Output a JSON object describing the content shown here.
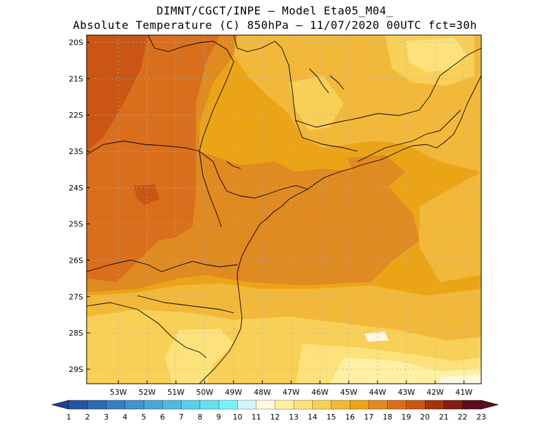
{
  "header": {
    "line1": "DIMNT/CGCT/INPE –  Model Eta05_M04_",
    "line2": "Absolute Temperature (C) 850hPa –  11/07/2020 00UTC fct=30h"
  },
  "map": {
    "lat_labels": [
      "20S",
      "21S",
      "22S",
      "23S",
      "24S",
      "25S",
      "26S",
      "27S",
      "28S",
      "29S"
    ],
    "lon_labels": [
      "53W",
      "52W",
      "51W",
      "50W",
      "49W",
      "48W",
      "47W",
      "46W",
      "45W",
      "44W",
      "43W",
      "42W",
      "41W"
    ],
    "extent": {
      "lon_min": -54.1,
      "lon_max": -40.4,
      "lat_min": -29.4,
      "lat_max": -19.8
    }
  },
  "colorbar": {
    "labels": [
      "1",
      "2",
      "3",
      "4",
      "5",
      "6",
      "7",
      "8",
      "9",
      "10",
      "11",
      "12",
      "13",
      "14",
      "15",
      "16",
      "17",
      "18",
      "19",
      "20",
      "21",
      "22",
      "23"
    ],
    "colors": [
      "#1f3f8f",
      "#26549e",
      "#2f6aad",
      "#3880bd",
      "#4193c8",
      "#4aa6d3",
      "#52b9dd",
      "#5bcde8",
      "#64e0f0",
      "#78f2fa",
      "#d2f7fc",
      "#fff8e0",
      "#fff0a3",
      "#fde27c",
      "#f8cf57",
      "#f2b83a",
      "#eca417",
      "#e08a22",
      "#d96f1c",
      "#cb5614",
      "#a3360f",
      "#801e14",
      "#5e0d1c"
    ],
    "under_color": "#1f3f8f",
    "over_color": "#5e0d1c"
  },
  "theme": {
    "grid_color": "#b0b0b0",
    "border_color": "#000000"
  }
}
